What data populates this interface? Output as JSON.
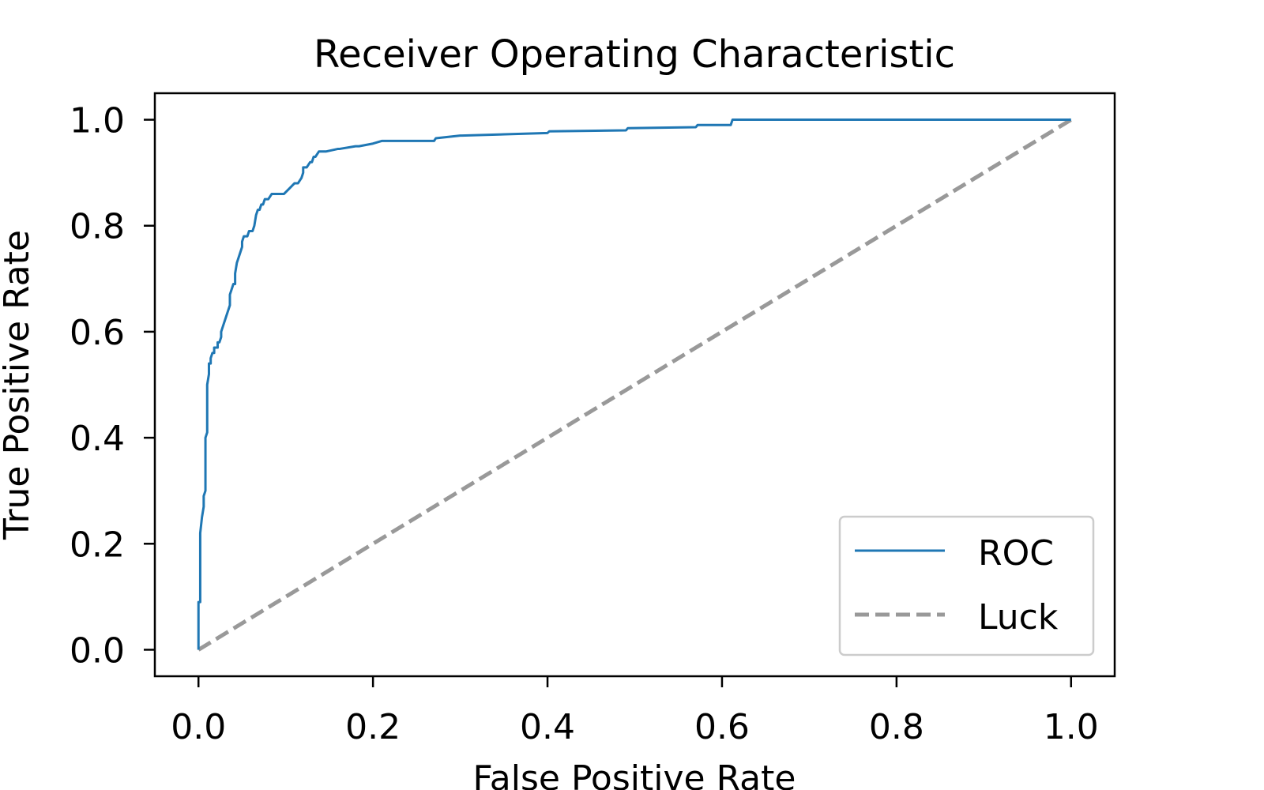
{
  "chart_data": {
    "type": "line",
    "title": "Receiver Operating Characteristic",
    "xlabel": "False Positive Rate",
    "ylabel": "True Positive Rate",
    "xlim": [
      -0.05,
      1.05
    ],
    "ylim": [
      -0.05,
      1.05
    ],
    "xticks": [
      0.0,
      0.2,
      0.4,
      0.6,
      0.8,
      1.0
    ],
    "yticks": [
      0.0,
      0.2,
      0.4,
      0.6,
      0.8,
      1.0
    ],
    "xtick_labels": [
      "0.0",
      "0.2",
      "0.4",
      "0.6",
      "0.8",
      "1.0"
    ],
    "ytick_labels": [
      "0.0",
      "0.2",
      "0.4",
      "0.6",
      "0.8",
      "1.0"
    ],
    "grid": false,
    "legend_position": "lower-right",
    "series": [
      {
        "name": "ROC",
        "color": "#1f77b4",
        "style": "solid",
        "x": [
          0.0,
          0.0,
          0.002,
          0.002,
          0.004,
          0.006,
          0.006,
          0.008,
          0.008,
          0.01,
          0.01,
          0.012,
          0.012,
          0.014,
          0.014,
          0.016,
          0.018,
          0.018,
          0.02,
          0.022,
          0.022,
          0.024,
          0.026,
          0.026,
          0.028,
          0.03,
          0.032,
          0.034,
          0.036,
          0.036,
          0.038,
          0.04,
          0.042,
          0.042,
          0.044,
          0.046,
          0.048,
          0.05,
          0.05,
          0.052,
          0.056,
          0.058,
          0.06,
          0.062,
          0.064,
          0.066,
          0.068,
          0.07,
          0.072,
          0.074,
          0.076,
          0.08,
          0.084,
          0.088,
          0.092,
          0.098,
          0.104,
          0.11,
          0.112,
          0.114,
          0.118,
          0.12,
          0.12,
          0.124,
          0.128,
          0.13,
          0.132,
          0.134,
          0.138,
          0.14,
          0.146,
          0.16,
          0.162,
          0.18,
          0.184,
          0.2,
          0.21,
          0.22,
          0.27,
          0.272,
          0.3,
          0.302,
          0.4,
          0.402,
          0.49,
          0.492,
          0.57,
          0.572,
          0.61,
          0.612,
          1.0
        ],
        "y": [
          0.0,
          0.09,
          0.09,
          0.22,
          0.25,
          0.27,
          0.29,
          0.3,
          0.4,
          0.41,
          0.5,
          0.52,
          0.54,
          0.54,
          0.55,
          0.56,
          0.56,
          0.57,
          0.57,
          0.57,
          0.58,
          0.58,
          0.59,
          0.6,
          0.61,
          0.62,
          0.63,
          0.64,
          0.65,
          0.67,
          0.68,
          0.69,
          0.69,
          0.71,
          0.73,
          0.74,
          0.75,
          0.76,
          0.77,
          0.78,
          0.78,
          0.79,
          0.79,
          0.79,
          0.8,
          0.82,
          0.83,
          0.83,
          0.84,
          0.84,
          0.85,
          0.85,
          0.86,
          0.86,
          0.86,
          0.86,
          0.87,
          0.88,
          0.88,
          0.88,
          0.89,
          0.9,
          0.91,
          0.91,
          0.92,
          0.92,
          0.93,
          0.93,
          0.94,
          0.94,
          0.94,
          0.945,
          0.945,
          0.95,
          0.95,
          0.955,
          0.96,
          0.96,
          0.96,
          0.965,
          0.97,
          0.97,
          0.975,
          0.978,
          0.98,
          0.984,
          0.986,
          0.99,
          0.99,
          1.0,
          1.0
        ]
      },
      {
        "name": "Luck",
        "color": "#999999",
        "style": "dashed",
        "x": [
          0.0,
          1.0
        ],
        "y": [
          0.0,
          1.0
        ]
      }
    ]
  }
}
